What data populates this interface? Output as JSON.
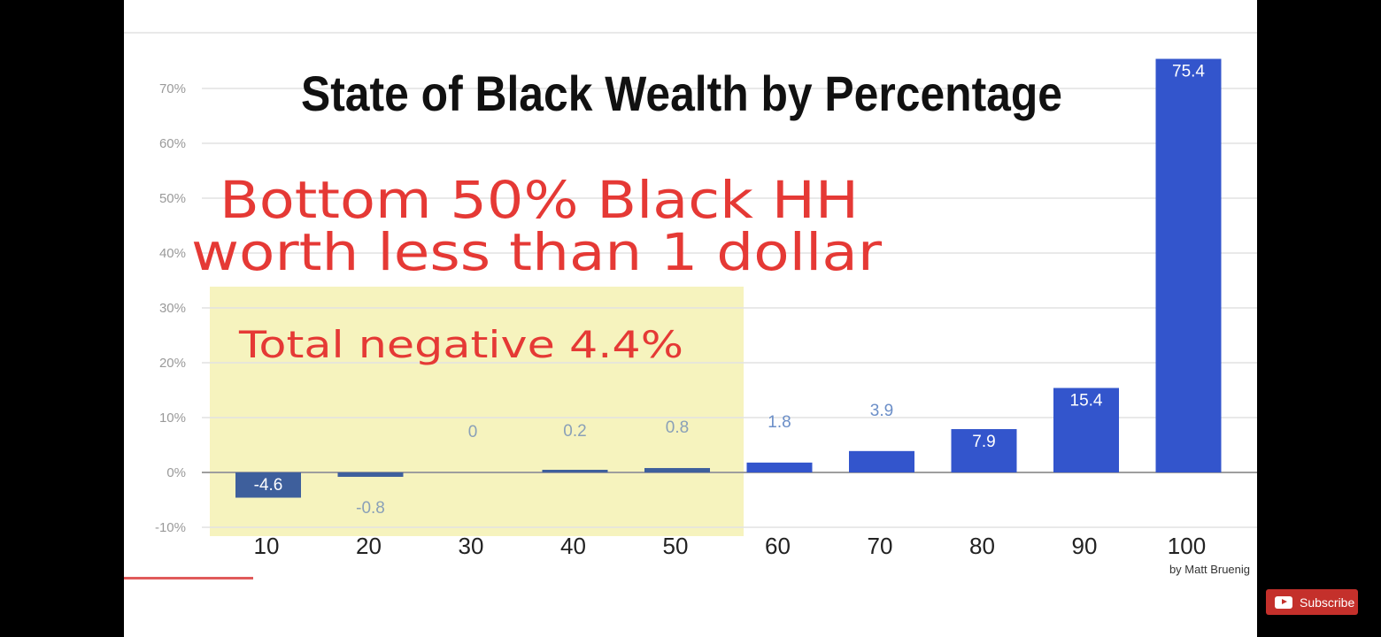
{
  "chart_data": {
    "type": "bar",
    "title": "State of Black Wealth by Percentage",
    "xlabel": "",
    "ylabel": "",
    "categories": [
      "10",
      "20",
      "30",
      "40",
      "50",
      "60",
      "70",
      "80",
      "90",
      "100"
    ],
    "values": [
      -4.6,
      -0.8,
      0,
      0.2,
      0.8,
      1.8,
      3.9,
      7.9,
      15.4,
      75.4
    ],
    "value_labels": [
      "-4.6",
      "-0.8",
      "0",
      "0.2",
      "0.8",
      "1.8",
      "3.9",
      "7.9",
      "15.4",
      "75.4"
    ],
    "ylim": [
      -10,
      75
    ],
    "y_ticks": [
      -10,
      0,
      10,
      20,
      30,
      40,
      50,
      60,
      70
    ],
    "y_tick_labels": [
      "-10%",
      "0%",
      "10%",
      "20%",
      "30%",
      "40%",
      "50%",
      "60%",
      "70%"
    ],
    "grid": true,
    "bar_color": "#3355cc",
    "highlight_color": "#f5f1b3",
    "annotations": {
      "headline_line1": "Bottom 50% Black HH",
      "headline_line2": "worth less than 1 dollar",
      "callout": "Total negative 4.4%",
      "credit": "by Matt Bruenig",
      "annotation_color": "#e53935"
    }
  },
  "player": {
    "subscribe_label": "Subscribe",
    "subscribe_icon": "youtube-icon",
    "progress_fraction": 0.114
  }
}
